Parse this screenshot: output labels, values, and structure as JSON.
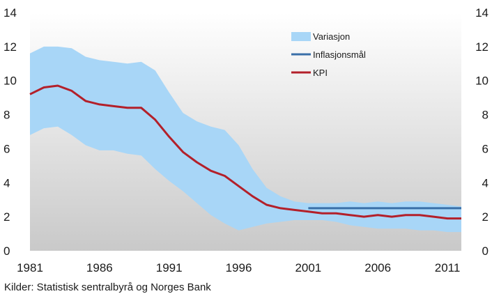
{
  "chart_data": {
    "type": "area",
    "title": "",
    "xlabel": "",
    "ylabel": "",
    "xlim": [
      1981,
      2012
    ],
    "ylim": [
      0,
      14
    ],
    "yticks": [
      0,
      2,
      4,
      6,
      8,
      10,
      12,
      14
    ],
    "xticks": [
      1981,
      1986,
      1991,
      1996,
      2001,
      2006,
      2011
    ],
    "grid": false,
    "legend_position": "top-right",
    "background": "gradient gray",
    "series": [
      {
        "name": "Variasjon",
        "kind": "band",
        "color": "#a8d6f7",
        "x": [
          1981,
          1982,
          1983,
          1984,
          1985,
          1986,
          1987,
          1988,
          1989,
          1990,
          1991,
          1992,
          1993,
          1994,
          1995,
          1996,
          1997,
          1998,
          1999,
          2000,
          2001,
          2002,
          2003,
          2004,
          2005,
          2006,
          2007,
          2008,
          2009,
          2010,
          2011,
          2012
        ],
        "upper": [
          11.6,
          12.0,
          12.0,
          11.9,
          11.4,
          11.2,
          11.1,
          11.0,
          11.1,
          10.6,
          9.3,
          8.1,
          7.6,
          7.3,
          7.1,
          6.2,
          4.8,
          3.7,
          3.2,
          2.9,
          2.8,
          2.8,
          2.8,
          2.9,
          2.8,
          2.9,
          2.8,
          2.9,
          2.9,
          2.8,
          2.7,
          2.6
        ],
        "lower": [
          6.8,
          7.2,
          7.3,
          6.8,
          6.2,
          5.9,
          5.9,
          5.7,
          5.6,
          4.8,
          4.1,
          3.5,
          2.8,
          2.1,
          1.6,
          1.2,
          1.4,
          1.6,
          1.7,
          1.8,
          1.8,
          1.8,
          1.7,
          1.5,
          1.4,
          1.3,
          1.3,
          1.3,
          1.2,
          1.2,
          1.1,
          1.1
        ]
      },
      {
        "name": "Inflasjonsmål",
        "kind": "line",
        "color": "#3a6fa8",
        "x": [
          2001,
          2012
        ],
        "values": [
          2.5,
          2.5
        ]
      },
      {
        "name": "KPI",
        "kind": "line",
        "color": "#b3202a",
        "x": [
          1981,
          1982,
          1983,
          1984,
          1985,
          1986,
          1987,
          1988,
          1989,
          1990,
          1991,
          1992,
          1993,
          1994,
          1995,
          1996,
          1997,
          1998,
          1999,
          2000,
          2001,
          2002,
          2003,
          2004,
          2005,
          2006,
          2007,
          2008,
          2009,
          2010,
          2011,
          2012
        ],
        "values": [
          9.2,
          9.6,
          9.7,
          9.4,
          8.8,
          8.6,
          8.5,
          8.4,
          8.4,
          7.7,
          6.7,
          5.8,
          5.2,
          4.7,
          4.4,
          3.8,
          3.2,
          2.7,
          2.5,
          2.4,
          2.3,
          2.2,
          2.2,
          2.1,
          2.0,
          2.1,
          2.0,
          2.1,
          2.1,
          2.0,
          1.9,
          1.9
        ]
      }
    ]
  },
  "source_text": "Kilder: Statistisk sentralbyrå og Norges Bank"
}
